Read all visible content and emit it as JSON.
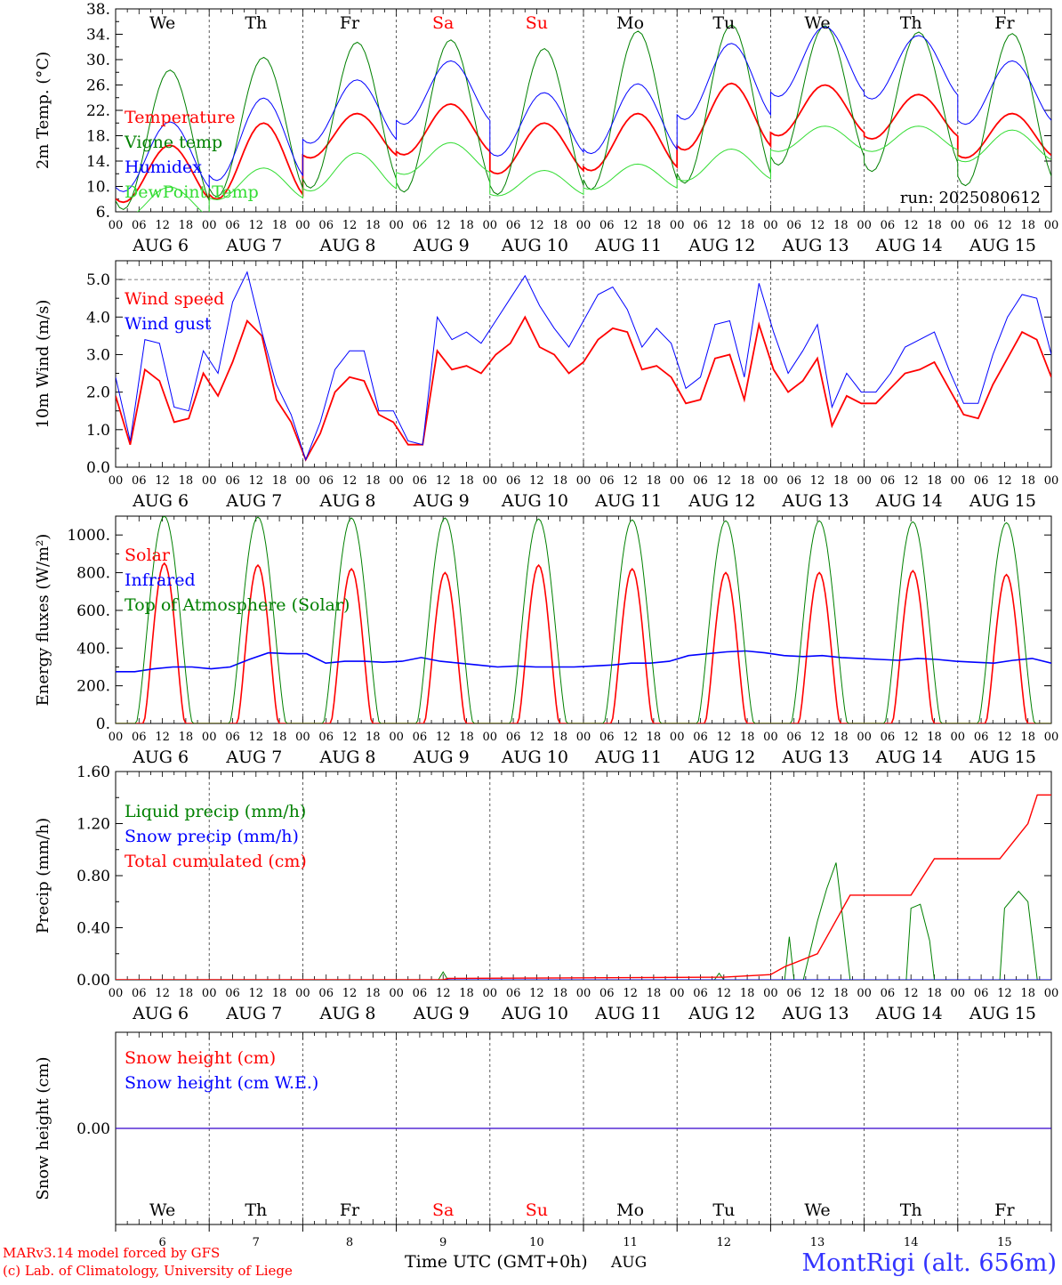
{
  "meta": {
    "run_label": "run: 2025080612",
    "footer_model": "MARv3.14 model forced by GFS",
    "footer_lab": "(c) Lab. of Climatology, University of Liege",
    "footer_xlabel": "Time UTC (GMT+0h)",
    "footer_month": "AUG",
    "station": "MontRigi (alt. 656m)"
  },
  "days": [
    {
      "abbr": "We",
      "num": "6",
      "date": "AUG  6",
      "weekend": false
    },
    {
      "abbr": "Th",
      "num": "7",
      "date": "AUG  7",
      "weekend": false
    },
    {
      "abbr": "Fr",
      "num": "8",
      "date": "AUG  8",
      "weekend": false
    },
    {
      "abbr": "Sa",
      "num": "9",
      "date": "AUG  9",
      "weekend": true
    },
    {
      "abbr": "Su",
      "num": "10",
      "date": "AUG 10",
      "weekend": true
    },
    {
      "abbr": "Mo",
      "num": "11",
      "date": "AUG 11",
      "weekend": false
    },
    {
      "abbr": "Tu",
      "num": "12",
      "date": "AUG 12",
      "weekend": false
    },
    {
      "abbr": "We",
      "num": "13",
      "date": "AUG 13",
      "weekend": false
    },
    {
      "abbr": "Th",
      "num": "14",
      "date": "AUG 14",
      "weekend": false
    },
    {
      "abbr": "Fr",
      "num": "15",
      "date": "AUG 15",
      "weekend": false
    }
  ],
  "hour_labels": [
    "00",
    "06",
    "12",
    "18"
  ],
  "hour_label_end": "00",
  "colors": {
    "red": "#ff0000",
    "green": "#008000",
    "blue": "#0000ff",
    "lightgreen": "#33dd33",
    "weekend": "#ff0000",
    "station": "#3333ff"
  },
  "chart_data": [
    {
      "id": "temp",
      "type": "line",
      "ylabel": "2m Temp. (°C)",
      "ylim": [
        6,
        38
      ],
      "yticks": [
        "38.",
        "34.",
        "30.",
        "26.",
        "22.",
        "18.",
        "14.",
        "10.",
        "6."
      ],
      "ytick_values": [
        38,
        34,
        30,
        26,
        22,
        18,
        14,
        10,
        6
      ],
      "dashed_hline": null,
      "series": [
        {
          "name": "Temperature",
          "color": "#ff0000",
          "width": 1.8,
          "gen": {
            "base": 11,
            "amp": [
              9,
              12,
              7,
              8,
              8,
              9,
              10.5,
              8,
              7,
              7
            ],
            "mean": [
              14,
              16,
              20,
              21,
              18,
              19,
              23,
              24,
              23,
              20
            ]
          }
        },
        {
          "name": "Vigne temp",
          "color": "#008000",
          "width": 1.0,
          "gen": {
            "amp": [
              22,
              22,
              23,
              24,
              23,
              25,
              25,
              22,
              22,
              24
            ],
            "mean": [
              20,
              22,
              24,
              24,
              23,
              25,
              26,
              27,
              26,
              25
            ]
          }
        },
        {
          "name": "Humidex",
          "color": "#0000ff",
          "width": 1.0,
          "gen": {
            "amp": [
              11,
              13,
              10,
              10,
              10,
              11,
              12,
              11,
              10,
              10
            ],
            "mean": [
              16,
              19,
              23,
              26,
              21,
              22,
              28,
              31,
              30,
              26
            ]
          }
        },
        {
          "name": "DewPoint Temp",
          "color": "#33dd33",
          "width": 1.0,
          "gen": {
            "amp": [
              5,
              5,
              6,
              5,
              4,
              4,
              5,
              4,
              4,
              5
            ],
            "mean": [
              8,
              11,
              13,
              15,
              11,
              12,
              14,
              18,
              18,
              17
            ]
          }
        }
      ]
    },
    {
      "id": "wind",
      "type": "line",
      "ylabel": "10m Wind (m/s)",
      "ylim": [
        0,
        5.5
      ],
      "yticks": [
        "5.0",
        "4.0",
        "3.0",
        "2.0",
        "1.0",
        "0.0"
      ],
      "ytick_values": [
        5,
        4,
        3,
        2,
        1,
        0
      ],
      "dashed_hline": 5.0,
      "series": [
        {
          "name": "Wind speed",
          "color": "#ff0000",
          "width": 1.8,
          "values": [
            1.9,
            0.6,
            2.6,
            2.3,
            1.2,
            1.3,
            2.5,
            1.9,
            2.8,
            3.9,
            3.5,
            1.8,
            1.2,
            0.2,
            0.9,
            2.0,
            2.4,
            2.3,
            1.4,
            1.2,
            0.6,
            0.6,
            3.1,
            2.6,
            2.7,
            2.5,
            3.0,
            3.3,
            4.0,
            3.2,
            3.0,
            2.5,
            2.8,
            3.4,
            3.7,
            3.6,
            2.6,
            2.7,
            2.4,
            1.7,
            1.8,
            2.9,
            3.0,
            1.8,
            3.8,
            2.6,
            2.0,
            2.3,
            2.9,
            1.1,
            1.9,
            1.7,
            1.7,
            2.1,
            2.5,
            2.6,
            2.8,
            2.1,
            1.4,
            1.3,
            2.2,
            2.9,
            3.6,
            3.4,
            2.4
          ]
        },
        {
          "name": "Wind gust",
          "color": "#0000ff",
          "width": 1.0,
          "values": [
            2.4,
            0.7,
            3.4,
            3.3,
            1.6,
            1.5,
            3.1,
            2.5,
            4.4,
            5.2,
            3.6,
            2.2,
            1.4,
            0.2,
            1.2,
            2.6,
            3.1,
            3.1,
            1.5,
            1.5,
            0.7,
            0.6,
            4.0,
            3.4,
            3.6,
            3.3,
            3.9,
            4.5,
            5.1,
            4.3,
            3.7,
            3.2,
            3.9,
            4.6,
            4.8,
            4.2,
            3.2,
            3.7,
            3.3,
            2.1,
            2.4,
            3.8,
            3.9,
            2.4,
            4.9,
            3.6,
            2.5,
            3.1,
            3.8,
            1.6,
            2.5,
            2.0,
            2.0,
            2.5,
            3.2,
            3.4,
            3.6,
            2.6,
            1.7,
            1.7,
            3.0,
            4.0,
            4.6,
            4.5,
            3.0
          ]
        }
      ]
    },
    {
      "id": "energy",
      "type": "line",
      "ylabel": "Energy fluxes (W/m²)",
      "ylim": [
        0,
        1100
      ],
      "yticks": [
        "1000.",
        "800.",
        "600.",
        "400.",
        "200.",
        "0."
      ],
      "ytick_values": [
        1000,
        800,
        600,
        400,
        200,
        0
      ],
      "dashed_hline": null,
      "series": [
        {
          "name": "Solar",
          "color": "#ff0000",
          "width": 1.6,
          "gen": {
            "peaks": [
              850,
              840,
              820,
              800,
              840,
              820,
              800,
              800,
              810,
              790
            ]
          }
        },
        {
          "name": "Infrared",
          "color": "#0000ff",
          "width": 1.6,
          "values": [
            275,
            275,
            290,
            300,
            300,
            290,
            300,
            340,
            375,
            370,
            370,
            320,
            330,
            330,
            325,
            330,
            350,
            330,
            320,
            310,
            300,
            305,
            300,
            300,
            300,
            305,
            310,
            320,
            320,
            330,
            360,
            370,
            380,
            385,
            375,
            360,
            355,
            360,
            350,
            345,
            340,
            335,
            345,
            340,
            330,
            325,
            320,
            335,
            345,
            320
          ]
        },
        {
          "name": "Top of Atmosphere (Solar)",
          "color": "#008000",
          "width": 1.0,
          "gen": {
            "peaks": [
              1100,
              1095,
              1090,
              1090,
              1085,
              1080,
              1075,
              1075,
              1070,
              1065
            ]
          }
        }
      ]
    },
    {
      "id": "precip",
      "type": "line",
      "ylabel": "Precip (mm/h)",
      "ylim": [
        0,
        1.6
      ],
      "yticks": [
        "1.60",
        "1.20",
        "0.80",
        "0.40",
        "0.00"
      ],
      "ytick_values": [
        1.6,
        1.2,
        0.8,
        0.4,
        0.0
      ],
      "dashed_hline": null,
      "series": [
        {
          "name": "Liquid precip (mm/h)",
          "color": "#008000",
          "width": 1.0,
          "points": [
            [
              0,
              0
            ],
            [
              3.45,
              0
            ],
            [
              3.5,
              0.06
            ],
            [
              3.55,
              0
            ],
            [
              6.4,
              0
            ],
            [
              6.45,
              0.05
            ],
            [
              6.5,
              0
            ],
            [
              7.15,
              0
            ],
            [
              7.2,
              0.33
            ],
            [
              7.25,
              0
            ],
            [
              7.35,
              0
            ],
            [
              7.5,
              0.45
            ],
            [
              7.6,
              0.7
            ],
            [
              7.7,
              0.9
            ],
            [
              7.85,
              0
            ],
            [
              8.45,
              0
            ],
            [
              8.5,
              0.55
            ],
            [
              8.6,
              0.58
            ],
            [
              8.7,
              0.3
            ],
            [
              8.75,
              0
            ],
            [
              9.45,
              0
            ],
            [
              9.5,
              0.55
            ],
            [
              9.65,
              0.68
            ],
            [
              9.75,
              0.6
            ],
            [
              9.85,
              0
            ],
            [
              10,
              0
            ]
          ]
        },
        {
          "name": "Snow precip (mm/h)",
          "color": "#0000ff",
          "width": 1.0,
          "points": [
            [
              0,
              0
            ],
            [
              10,
              0
            ]
          ]
        },
        {
          "name": "Total cumulated (cm)",
          "color": "#ff0000",
          "width": 1.4,
          "points": [
            [
              0,
              0
            ],
            [
              3.5,
              0
            ],
            [
              3.55,
              0.01
            ],
            [
              6.5,
              0.02
            ],
            [
              7.0,
              0.04
            ],
            [
              7.15,
              0.1
            ],
            [
              7.5,
              0.2
            ],
            [
              7.85,
              0.65
            ],
            [
              8.5,
              0.65
            ],
            [
              8.75,
              0.93
            ],
            [
              9.45,
              0.93
            ],
            [
              9.75,
              1.2
            ],
            [
              9.85,
              1.42
            ],
            [
              10,
              1.42
            ]
          ]
        }
      ]
    },
    {
      "id": "snow",
      "type": "line",
      "ylabel": "Snow height (cm)",
      "ylim": [
        -1,
        1
      ],
      "yticks": [
        "0.00"
      ],
      "ytick_values": [
        0
      ],
      "dashed_hline": null,
      "series": [
        {
          "name": "Snow height (cm)",
          "color": "#ff0000",
          "width": 1.2,
          "points": [
            [
              0,
              0
            ],
            [
              10,
              0
            ]
          ]
        },
        {
          "name": "Snow height (cm W.E.)",
          "color": "#0000ff",
          "width": 1.0,
          "points": [
            [
              0,
              0
            ],
            [
              10,
              0
            ]
          ]
        }
      ]
    }
  ]
}
